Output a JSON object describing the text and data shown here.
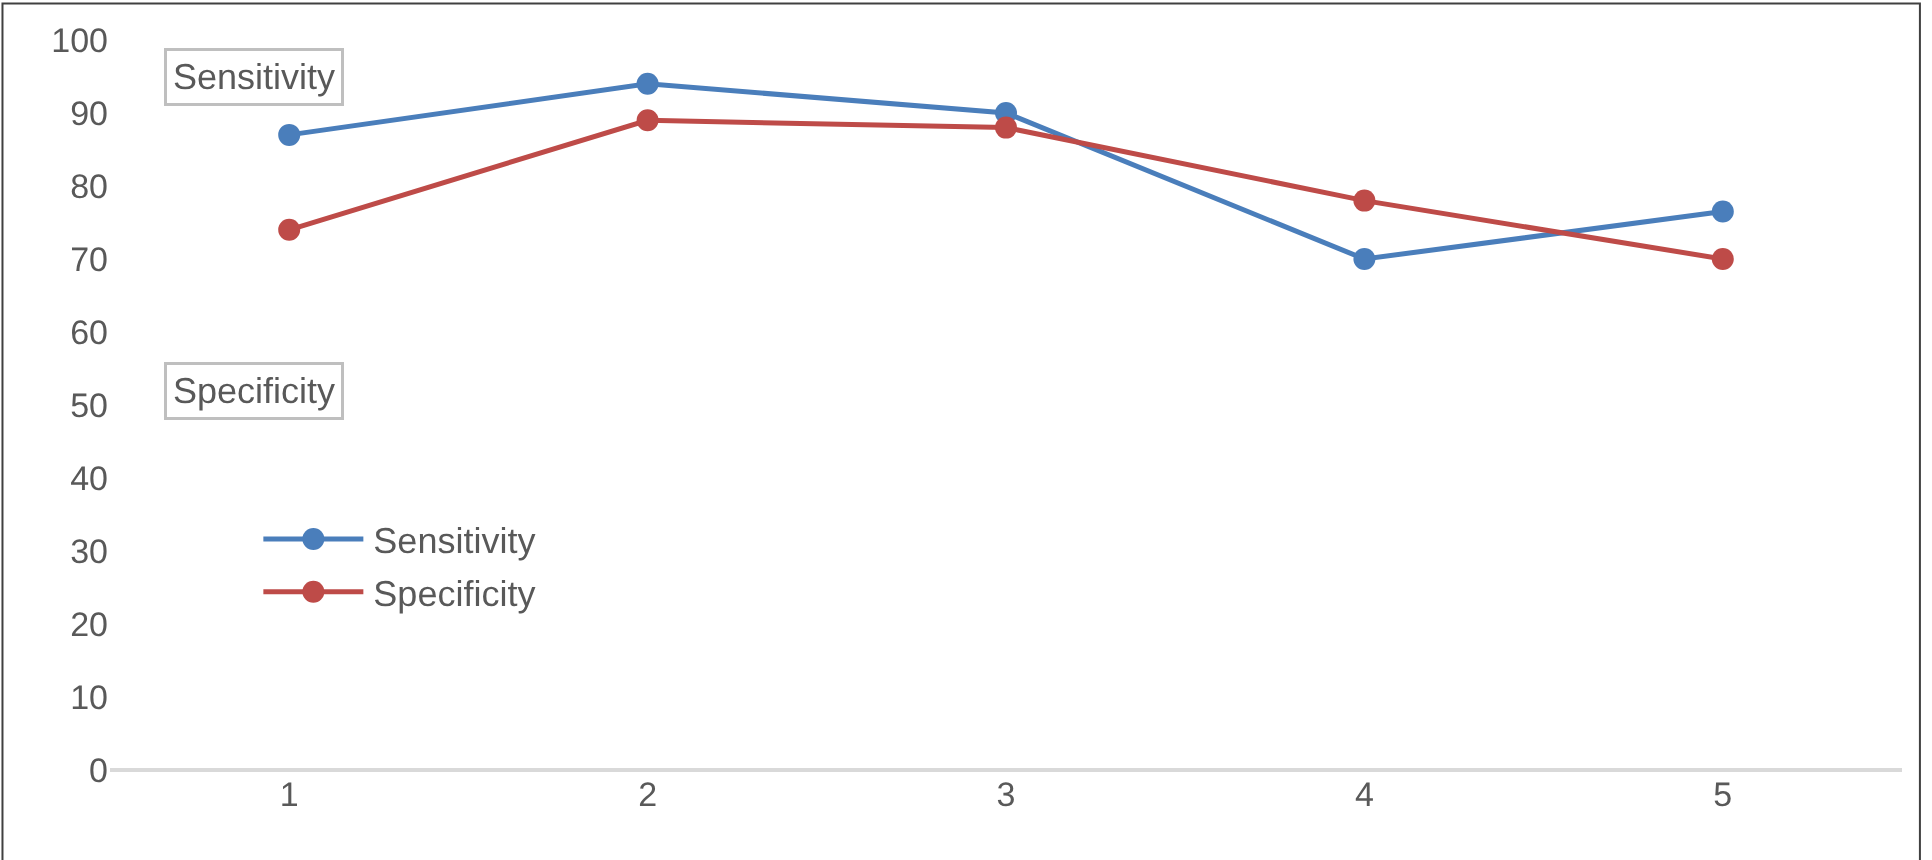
{
  "chart_data": {
    "type": "line",
    "categories": [
      "1",
      "2",
      "3",
      "4",
      "5"
    ],
    "series": [
      {
        "name": "Sensitivity",
        "color": "#4a7ebb",
        "values": [
          87,
          94,
          90,
          70,
          76.5
        ]
      },
      {
        "name": "Specificity",
        "color": "#be4b48",
        "values": [
          74,
          89,
          88,
          78,
          70
        ]
      }
    ],
    "ylim": [
      0,
      100
    ],
    "yticks": [
      0,
      10,
      20,
      30,
      40,
      50,
      60,
      70,
      80,
      90,
      100
    ],
    "annotations": [
      "Sensitivity",
      "Specificity"
    ],
    "marker": "circle",
    "line_style": "solid",
    "grid": false,
    "legend": "left"
  }
}
